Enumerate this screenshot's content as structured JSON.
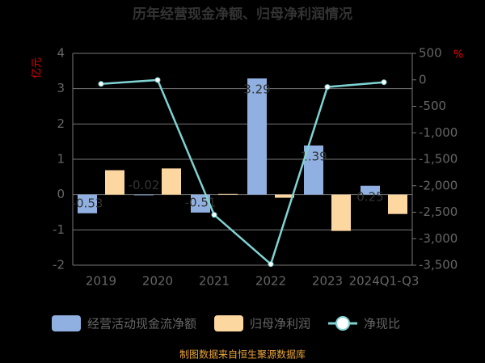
{
  "chart_data": {
    "type": "bar_line",
    "title": "历年经营现金净额、归母净利润情况",
    "y_label": "亿元",
    "y2_label": "%",
    "categories": [
      "2019",
      "2020",
      "2021",
      "2022",
      "2023",
      "2024Q1-Q3"
    ],
    "series": [
      {
        "name": "经营活动现金流净额",
        "type": "bar",
        "color": "#8fb0e0",
        "values": [
          -0.53,
          -0.02,
          -0.51,
          3.29,
          1.39,
          0.25
        ]
      },
      {
        "name": "归母净利润",
        "type": "bar",
        "color": "#fdd7a0",
        "values": [
          0.69,
          0.74,
          0.02,
          -0.09,
          -1.03,
          -0.55
        ]
      },
      {
        "name": "净现比",
        "type": "line",
        "axis": "y2",
        "color": "#7fd3d3",
        "values": [
          -77,
          -3,
          -2550,
          -3480,
          -135,
          -45
        ]
      }
    ],
    "ylim": [
      -2,
      4
    ],
    "yticks": [
      -2,
      -1,
      0,
      1,
      2,
      3,
      4
    ],
    "y2lim": [
      -3500,
      500
    ],
    "y2ticks": [
      {
        "value": -3500,
        "label": "-3,500"
      },
      {
        "value": -3000,
        "label": "-3,000"
      },
      {
        "value": -2500,
        "label": "-2,500"
      },
      {
        "value": -2000,
        "label": "-2,000"
      },
      {
        "value": -1500,
        "label": "-1,500"
      },
      {
        "value": -1000,
        "label": "-1,000"
      },
      -500,
      0,
      500
    ],
    "grid": true,
    "source": "制图数据来自恒生聚源数据库"
  }
}
